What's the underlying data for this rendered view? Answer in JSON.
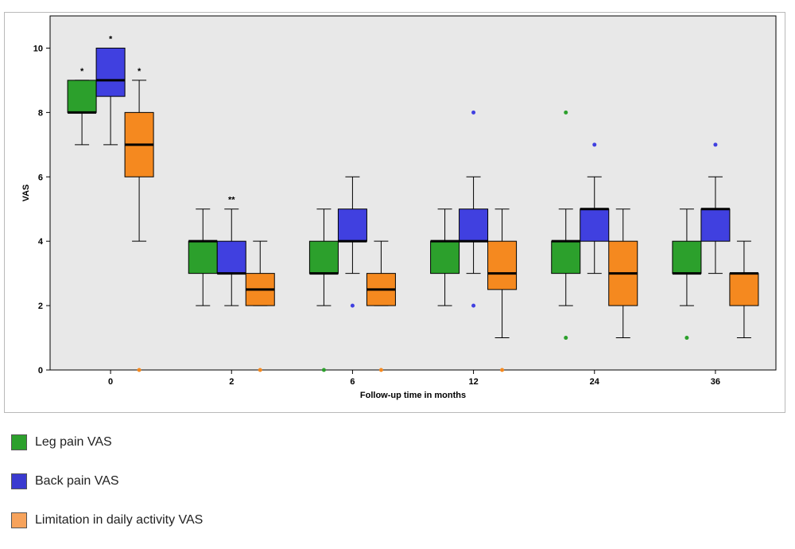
{
  "chart_data": {
    "type": "boxplot",
    "title": "",
    "xlabel": "Follow-up time in months",
    "ylabel": "VAS",
    "ylim": [
      0,
      11
    ],
    "yticks": [
      0,
      2,
      4,
      6,
      8,
      10
    ],
    "categories": [
      "0",
      "2",
      "6",
      "12",
      "24",
      "36"
    ],
    "series": [
      {
        "name": "Leg pain VAS",
        "color": "#2ca02c",
        "boxes": [
          {
            "category": "0",
            "min": 7,
            "q1": 8,
            "median": 8,
            "q3": 9,
            "max": 9,
            "outliers": [],
            "annotation": "*"
          },
          {
            "category": "2",
            "min": 2,
            "q1": 3,
            "median": 4,
            "q3": 4,
            "max": 5,
            "outliers": [],
            "annotation": ""
          },
          {
            "category": "6",
            "min": 2,
            "q1": 3,
            "median": 3,
            "q3": 4,
            "max": 5,
            "outliers": [
              0
            ],
            "annotation": ""
          },
          {
            "category": "12",
            "min": 2,
            "q1": 3,
            "median": 4,
            "q3": 4,
            "max": 5,
            "outliers": [],
            "annotation": ""
          },
          {
            "category": "24",
            "min": 2,
            "q1": 3,
            "median": 4,
            "q3": 4,
            "max": 5,
            "outliers": [
              8,
              1
            ],
            "annotation": ""
          },
          {
            "category": "36",
            "min": 2,
            "q1": 3,
            "median": 3,
            "q3": 4,
            "max": 5,
            "outliers": [
              1
            ],
            "annotation": ""
          }
        ]
      },
      {
        "name": "Back pain VAS",
        "color": "#4040e0",
        "boxes": [
          {
            "category": "0",
            "min": 7,
            "q1": 8.5,
            "median": 9,
            "q3": 10,
            "max": 10,
            "outliers": [],
            "annotation": "*"
          },
          {
            "category": "2",
            "min": 2,
            "q1": 3,
            "median": 3,
            "q3": 4,
            "max": 5,
            "outliers": [],
            "annotation": "**"
          },
          {
            "category": "6",
            "min": 3,
            "q1": 4,
            "median": 4,
            "q3": 5,
            "max": 6,
            "outliers": [
              2
            ],
            "annotation": ""
          },
          {
            "category": "12",
            "min": 3,
            "q1": 4,
            "median": 4,
            "q3": 5,
            "max": 6,
            "outliers": [
              8,
              2
            ],
            "annotation": ""
          },
          {
            "category": "24",
            "min": 3,
            "q1": 4,
            "median": 5,
            "q3": 5,
            "max": 6,
            "outliers": [
              7
            ],
            "annotation": ""
          },
          {
            "category": "36",
            "min": 3,
            "q1": 4,
            "median": 5,
            "q3": 5,
            "max": 6,
            "outliers": [
              7
            ],
            "annotation": ""
          }
        ]
      },
      {
        "name": "Limitation in daily activity VAS",
        "color": "#f5891f",
        "boxes": [
          {
            "category": "0",
            "min": 4,
            "q1": 6,
            "median": 7,
            "q3": 8,
            "max": 9,
            "outliers": [
              0
            ],
            "annotation": "*"
          },
          {
            "category": "2",
            "min": 2,
            "q1": 2,
            "median": 2.5,
            "q3": 3,
            "max": 4,
            "outliers": [
              0
            ],
            "annotation": ""
          },
          {
            "category": "6",
            "min": 2,
            "q1": 2,
            "median": 2.5,
            "q3": 3,
            "max": 4,
            "outliers": [
              0
            ],
            "annotation": ""
          },
          {
            "category": "12",
            "min": 1,
            "q1": 2.5,
            "median": 3,
            "q3": 4,
            "max": 5,
            "outliers": [
              0
            ],
            "annotation": ""
          },
          {
            "category": "24",
            "min": 1,
            "q1": 2,
            "median": 3,
            "q3": 4,
            "max": 5,
            "outliers": [],
            "annotation": ""
          },
          {
            "category": "36",
            "min": 1,
            "q1": 2,
            "median": 3,
            "q3": 3,
            "max": 4,
            "outliers": [],
            "annotation": ""
          }
        ]
      }
    ],
    "legend_position": "bottom-left"
  },
  "legend": {
    "items": [
      {
        "label": "Leg pain VAS",
        "color": "#2ca02c"
      },
      {
        "label": "Back pain VAS",
        "color": "#3a3ad0"
      },
      {
        "label": "Limitation in daily activity VAS",
        "color": "#f7a35c"
      }
    ]
  }
}
